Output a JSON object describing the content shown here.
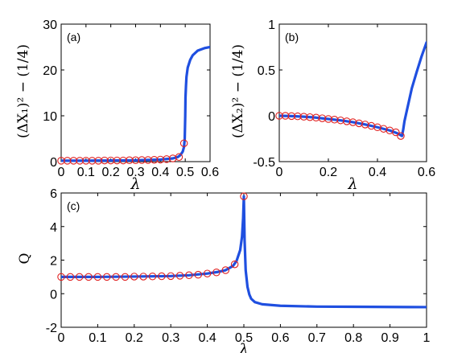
{
  "colors": {
    "curve": "#1f4fe0",
    "marker": "#e02020"
  },
  "chart_data": [
    {
      "type": "line",
      "panel_label": "(a)",
      "xlabel": "λ",
      "ylabel": "(ΔX₁)² − (1/4)",
      "xlim": [
        0,
        0.6
      ],
      "ylim": [
        0,
        30
      ],
      "xticks": [
        0,
        0.1,
        0.2,
        0.3,
        0.4,
        0.5,
        0.6
      ],
      "yticks": [
        0,
        10,
        20,
        30
      ],
      "series": [
        {
          "style": "line",
          "x": [
            0,
            0.1,
            0.2,
            0.3,
            0.4,
            0.45,
            0.47,
            0.48,
            0.49,
            0.495,
            0.498,
            0.5,
            0.501,
            0.503,
            0.505,
            0.51,
            0.52,
            0.53,
            0.55,
            0.58,
            0.6
          ],
          "y": [
            0.2,
            0.2,
            0.25,
            0.3,
            0.45,
            0.7,
            1.0,
            1.4,
            2.2,
            3.2,
            5,
            10,
            14,
            16.5,
            18.5,
            20.5,
            22.2,
            23.2,
            24.2,
            24.8,
            25
          ]
        },
        {
          "style": "markers",
          "x": [
            0,
            0.025,
            0.05,
            0.075,
            0.1,
            0.125,
            0.15,
            0.175,
            0.2,
            0.225,
            0.25,
            0.275,
            0.3,
            0.325,
            0.35,
            0.375,
            0.4,
            0.425,
            0.45,
            0.475,
            0.495
          ],
          "y": [
            0.2,
            0.2,
            0.2,
            0.2,
            0.2,
            0.2,
            0.2,
            0.25,
            0.25,
            0.25,
            0.25,
            0.3,
            0.3,
            0.35,
            0.35,
            0.4,
            0.45,
            0.55,
            0.7,
            1.0,
            4.0
          ]
        }
      ]
    },
    {
      "type": "line",
      "panel_label": "(b)",
      "xlabel": "λ",
      "ylabel": "(ΔX₂)² − (1/4)",
      "xlim": [
        0,
        0.6
      ],
      "ylim": [
        -0.5,
        1
      ],
      "xticks": [
        0,
        0.2,
        0.4,
        0.6
      ],
      "yticks": [
        -0.5,
        0,
        0.5,
        1
      ],
      "series": [
        {
          "style": "line",
          "x": [
            0,
            0.05,
            0.1,
            0.15,
            0.2,
            0.25,
            0.3,
            0.35,
            0.4,
            0.45,
            0.48,
            0.5,
            0.505,
            0.51,
            0.52,
            0.53,
            0.54,
            0.56,
            0.58,
            0.6
          ],
          "y": [
            0.0,
            -0.003,
            -0.01,
            -0.02,
            -0.035,
            -0.05,
            -0.07,
            -0.095,
            -0.125,
            -0.16,
            -0.19,
            -0.22,
            -0.15,
            -0.06,
            0.06,
            0.18,
            0.3,
            0.48,
            0.65,
            0.8
          ]
        },
        {
          "style": "markers",
          "x": [
            0,
            0.025,
            0.05,
            0.075,
            0.1,
            0.125,
            0.15,
            0.175,
            0.2,
            0.225,
            0.25,
            0.275,
            0.3,
            0.325,
            0.35,
            0.375,
            0.4,
            0.425,
            0.45,
            0.475,
            0.495
          ],
          "y": [
            0.0,
            0.0,
            -0.003,
            -0.006,
            -0.01,
            -0.015,
            -0.02,
            -0.027,
            -0.035,
            -0.042,
            -0.05,
            -0.06,
            -0.07,
            -0.082,
            -0.095,
            -0.11,
            -0.125,
            -0.142,
            -0.16,
            -0.18,
            -0.22
          ]
        }
      ]
    },
    {
      "type": "line",
      "panel_label": "(c)",
      "xlabel": "λ",
      "ylabel": "Q",
      "xlim": [
        0,
        1
      ],
      "ylim": [
        -2,
        6
      ],
      "xticks": [
        0,
        0.1,
        0.2,
        0.3,
        0.4,
        0.5,
        0.6,
        0.7,
        0.8,
        0.9,
        1
      ],
      "yticks": [
        -2,
        0,
        2,
        4,
        6
      ],
      "series": [
        {
          "style": "line",
          "x": [
            0,
            0.1,
            0.2,
            0.3,
            0.35,
            0.4,
            0.43,
            0.45,
            0.47,
            0.48,
            0.49,
            0.495,
            0.498,
            0.5,
            0.502,
            0.505,
            0.51,
            0.515,
            0.52,
            0.53,
            0.55,
            0.6,
            0.7,
            0.8,
            0.9,
            1
          ],
          "y": [
            1.0,
            1.0,
            1.02,
            1.05,
            1.1,
            1.2,
            1.3,
            1.4,
            1.65,
            1.95,
            2.6,
            3.4,
            4.5,
            5.8,
            3.2,
            1.4,
            0.4,
            -0.05,
            -0.3,
            -0.5,
            -0.63,
            -0.72,
            -0.77,
            -0.78,
            -0.79,
            -0.8
          ]
        },
        {
          "style": "markers",
          "x": [
            0,
            0.025,
            0.05,
            0.075,
            0.1,
            0.125,
            0.15,
            0.175,
            0.2,
            0.225,
            0.25,
            0.275,
            0.3,
            0.325,
            0.35,
            0.375,
            0.4,
            0.425,
            0.45,
            0.475,
            0.5
          ],
          "y": [
            1.0,
            1.0,
            1.0,
            1.0,
            1.0,
            1.0,
            1.0,
            1.0,
            1.02,
            1.02,
            1.03,
            1.04,
            1.05,
            1.07,
            1.1,
            1.13,
            1.2,
            1.27,
            1.4,
            1.75,
            5.8
          ]
        }
      ]
    }
  ]
}
